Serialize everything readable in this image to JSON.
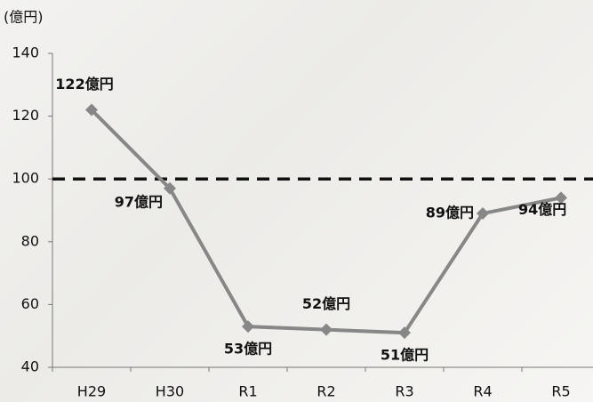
{
  "chart_data": {
    "type": "line",
    "y_label": "(億円)",
    "categories": [
      "H29",
      "H30",
      "R1",
      "R2",
      "R3",
      "R4",
      "R5"
    ],
    "values": [
      122,
      97,
      53,
      52,
      51,
      89,
      94
    ],
    "value_labels": [
      "122億円",
      "97億円",
      "53億円",
      "52億円",
      "51億円",
      "89億円",
      "94億円"
    ],
    "color": "#878787",
    "ylim": [
      40,
      140
    ],
    "yticks": [
      40,
      60,
      80,
      100,
      120,
      140
    ],
    "reference_line": 100
  }
}
